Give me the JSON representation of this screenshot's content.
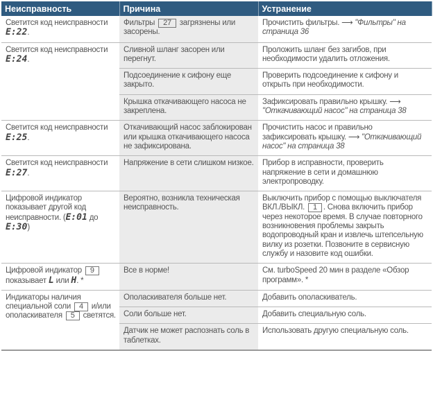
{
  "header": [
    "Неисправность",
    "Причина",
    "Устранение"
  ],
  "rows": [
    {
      "fault": [
        {
          "t": "Светится код неисправности "
        },
        {
          "code": "E:22"
        },
        {
          "t": "."
        }
      ],
      "causes": [
        {
          "cause": [
            {
              "t": "Фильтры "
            },
            {
              "box": "27"
            },
            {
              "t": " загрязнены или засорены."
            }
          ],
          "fix": [
            {
              "t": "Прочистить фильтры. ⟶ "
            },
            {
              "link": "\"Фильтры\" на страница 36"
            }
          ]
        }
      ]
    },
    {
      "fault": [
        {
          "t": "Светится код неисправности "
        },
        {
          "code": "E:24"
        },
        {
          "t": "."
        }
      ],
      "causes": [
        {
          "cause": [
            {
              "t": "Сливной шланг засорен или перегнут."
            }
          ],
          "fix": [
            {
              "t": "Проложить шланг без загибов, при необходимости удалить отложения."
            }
          ]
        },
        {
          "cause": [
            {
              "t": "Подсоединение к сифону еще закрыто."
            }
          ],
          "fix": [
            {
              "t": "Проверить подсоединение к сифону и открыть при необходимости."
            }
          ]
        },
        {
          "cause": [
            {
              "t": "Крышка откачивающего насоса не закреплена."
            }
          ],
          "fix": [
            {
              "t": "Зафиксировать правильно крышку. ⟶ "
            },
            {
              "link": "\"Откачивающий насос\" на страница 38"
            }
          ]
        }
      ]
    },
    {
      "fault": [
        {
          "t": "Светится код неисправности "
        },
        {
          "code": "E:25"
        },
        {
          "t": "."
        }
      ],
      "causes": [
        {
          "cause": [
            {
              "t": "Откачивающий насос заблокирован или крышка откачивающего насоса не зафиксирована."
            }
          ],
          "fix": [
            {
              "t": "Прочистить насос и правильно зафиксировать крышку. ⟶ "
            },
            {
              "link": "\"Откачивающий насос\" на страница 38"
            }
          ]
        }
      ]
    },
    {
      "fault": [
        {
          "t": "Светится код неисправности "
        },
        {
          "code": "E:27"
        },
        {
          "t": "."
        }
      ],
      "causes": [
        {
          "cause": [
            {
              "t": "Напряжение в сети слишком низкое."
            }
          ],
          "fix": [
            {
              "t": "Прибор в исправности, проверить напряжение в сети и домашнюю электропроводку."
            }
          ]
        }
      ]
    },
    {
      "fault": [
        {
          "t": "Цифровой индикатор показывает другой код неисправности. ("
        },
        {
          "code": "E:01"
        },
        {
          "t": " до "
        },
        {
          "code": "E:30"
        },
        {
          "t": ")"
        }
      ],
      "causes": [
        {
          "cause": [
            {
              "t": "Вероятно, возникла техническая неисправность."
            }
          ],
          "fix": [
            {
              "t": "Выключить прибор с помощью выключателя ВКЛ./ВЫКЛ. "
            },
            {
              "box": "1"
            },
            {
              "t": ". Снова включить прибор через некоторое время. В случае повторного возникновения проблемы закрыть водопроводный кран и извлечь штепсельную вилку из розетки. Позвоните в сервисную службу и назовите код ошибки."
            }
          ]
        }
      ]
    },
    {
      "fault": [
        {
          "t": "Цифровой индикатор "
        },
        {
          "box": "9"
        },
        {
          "t": " показывает "
        },
        {
          "code": "L"
        },
        {
          "t": " или "
        },
        {
          "code": "H"
        },
        {
          "t": ". *"
        }
      ],
      "causes": [
        {
          "cause": [
            {
              "t": "Все в норме!"
            }
          ],
          "fix": [
            {
              "t": "См. turboSpeed 20 мин в разделе «Обзор программ». *"
            }
          ]
        }
      ]
    },
    {
      "fault": [
        {
          "t": "Индикаторы наличия специальной соли "
        },
        {
          "box": "4"
        },
        {
          "t": " и/или ополаскивателя "
        },
        {
          "box": "5"
        },
        {
          "t": " светятся."
        }
      ],
      "causes": [
        {
          "cause": [
            {
              "t": "Ополаскивателя больше нет."
            }
          ],
          "fix": [
            {
              "t": "Добавить ополаскиватель."
            }
          ]
        },
        {
          "cause": [
            {
              "t": "Соли больше нет."
            }
          ],
          "fix": [
            {
              "t": "Добавить специальную соль."
            }
          ]
        },
        {
          "cause": [
            {
              "t": "Датчик не может распознать соль в таблетках."
            }
          ],
          "fix": [
            {
              "t": "Использовать другую специальную соль."
            }
          ]
        }
      ]
    }
  ],
  "colors": {
    "header_bg": "#2f5b80",
    "middle_bg": "#ebebeb"
  }
}
